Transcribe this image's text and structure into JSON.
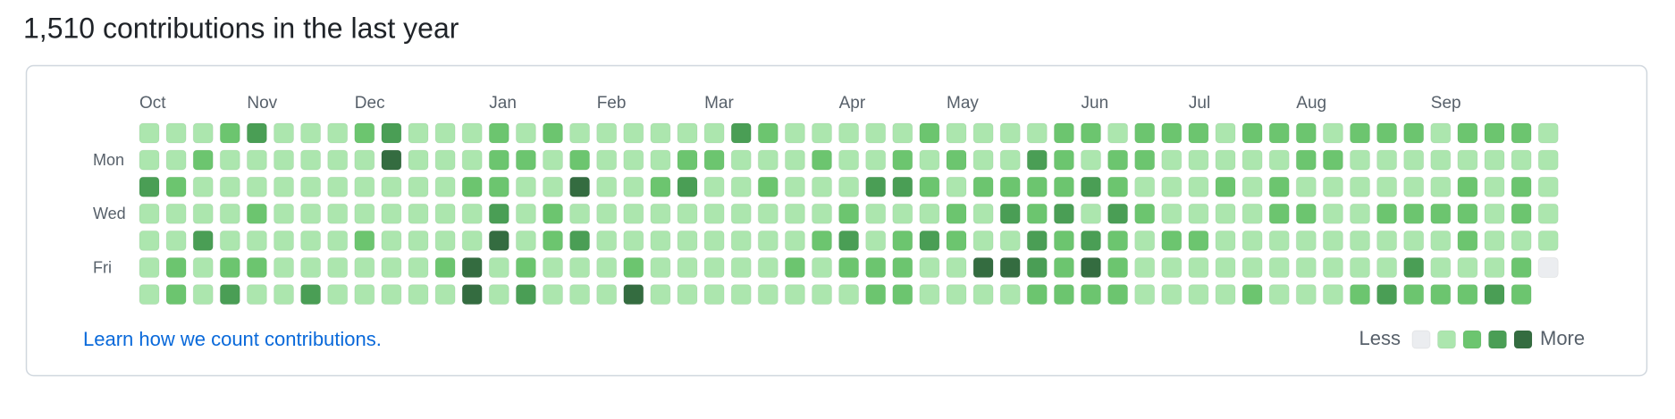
{
  "title": "1,510 contributions in the last year",
  "graph": {
    "months": [
      {
        "label": "Oct",
        "week": 0
      },
      {
        "label": "Nov",
        "week": 4
      },
      {
        "label": "Dec",
        "week": 8
      },
      {
        "label": "Jan",
        "week": 13
      },
      {
        "label": "Feb",
        "week": 17
      },
      {
        "label": "Mar",
        "week": 21
      },
      {
        "label": "Apr",
        "week": 26
      },
      {
        "label": "May",
        "week": 30
      },
      {
        "label": "Jun",
        "week": 35
      },
      {
        "label": "Jul",
        "week": 39
      },
      {
        "label": "Aug",
        "week": 43
      },
      {
        "label": "Sep",
        "week": 48
      }
    ],
    "day_labels": [
      null,
      "Mon",
      null,
      "Wed",
      null,
      "Fri",
      null
    ],
    "level_colors": [
      "#ebedf0",
      "#ace6ae",
      "#6cc56f",
      "#4a9e55",
      "#346c40"
    ],
    "rows": [
      [
        1,
        1,
        1,
        2,
        3,
        1,
        1,
        1,
        2,
        3,
        1,
        1,
        1,
        2,
        1,
        2,
        1,
        1,
        1,
        1,
        1,
        1,
        3,
        2,
        1,
        1,
        1,
        1,
        1,
        2,
        1,
        1,
        1,
        1,
        2,
        2,
        1,
        2,
        2,
        2,
        1,
        2,
        2,
        2,
        1,
        2,
        2,
        2,
        1,
        2,
        2,
        2,
        1
      ],
      [
        1,
        1,
        2,
        1,
        1,
        1,
        1,
        1,
        1,
        4,
        1,
        1,
        1,
        2,
        2,
        1,
        2,
        1,
        1,
        1,
        2,
        2,
        1,
        1,
        1,
        2,
        1,
        1,
        2,
        1,
        2,
        1,
        1,
        3,
        2,
        1,
        2,
        2,
        1,
        1,
        1,
        1,
        1,
        2,
        2,
        1,
        1,
        1,
        1,
        1,
        1,
        1,
        1
      ],
      [
        3,
        2,
        1,
        1,
        1,
        1,
        1,
        1,
        1,
        1,
        1,
        1,
        2,
        2,
        1,
        1,
        4,
        1,
        1,
        2,
        3,
        1,
        1,
        2,
        1,
        1,
        1,
        3,
        3,
        2,
        1,
        2,
        2,
        2,
        2,
        3,
        2,
        1,
        1,
        1,
        2,
        1,
        2,
        1,
        1,
        1,
        1,
        1,
        1,
        2,
        1,
        2,
        1
      ],
      [
        1,
        1,
        1,
        1,
        2,
        1,
        1,
        1,
        1,
        1,
        1,
        1,
        1,
        3,
        1,
        2,
        1,
        1,
        1,
        1,
        1,
        1,
        1,
        1,
        1,
        1,
        2,
        1,
        1,
        1,
        2,
        1,
        3,
        2,
        3,
        1,
        3,
        2,
        1,
        1,
        1,
        1,
        2,
        2,
        1,
        1,
        2,
        2,
        2,
        2,
        1,
        2,
        1
      ],
      [
        1,
        1,
        3,
        1,
        1,
        1,
        1,
        1,
        2,
        1,
        1,
        1,
        1,
        4,
        1,
        2,
        3,
        1,
        1,
        1,
        1,
        1,
        1,
        1,
        1,
        2,
        3,
        1,
        2,
        3,
        2,
        1,
        1,
        3,
        2,
        3,
        2,
        1,
        2,
        2,
        1,
        1,
        1,
        1,
        1,
        1,
        1,
        1,
        1,
        2,
        1,
        1,
        1
      ],
      [
        1,
        2,
        1,
        2,
        2,
        1,
        1,
        1,
        1,
        1,
        1,
        2,
        4,
        1,
        2,
        1,
        1,
        1,
        2,
        1,
        1,
        1,
        1,
        1,
        2,
        1,
        2,
        2,
        2,
        1,
        1,
        4,
        4,
        3,
        2,
        4,
        2,
        1,
        1,
        1,
        1,
        1,
        1,
        1,
        1,
        1,
        1,
        3,
        1,
        1,
        1,
        2,
        0
      ],
      [
        1,
        2,
        1,
        3,
        1,
        1,
        3,
        1,
        1,
        1,
        1,
        1,
        4,
        1,
        3,
        1,
        1,
        1,
        4,
        1,
        1,
        1,
        1,
        1,
        1,
        1,
        1,
        2,
        2,
        1,
        1,
        1,
        1,
        2,
        2,
        2,
        2,
        1,
        1,
        1,
        1,
        2,
        1,
        1,
        1,
        2,
        3,
        2,
        2,
        2,
        3,
        2,
        null
      ]
    ],
    "link": "Learn how we count contributions.",
    "legend_less": "Less",
    "legend_more": "More"
  }
}
